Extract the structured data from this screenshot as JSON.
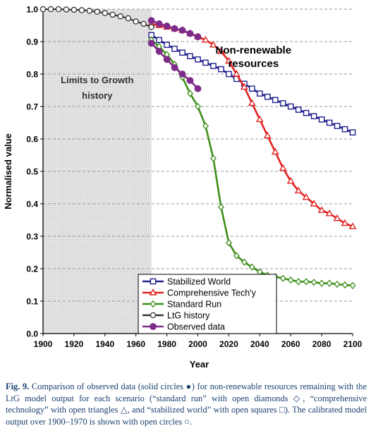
{
  "chart_data": {
    "type": "line",
    "title": "",
    "xlabel": "Year",
    "ylabel": "Normalised value",
    "xlim": [
      1900,
      2100
    ],
    "ylim": [
      0,
      1.0
    ],
    "xticks": [
      1900,
      1920,
      1940,
      1960,
      1980,
      2000,
      2020,
      2040,
      2060,
      2080,
      2100
    ],
    "yticks": [
      0.0,
      0.1,
      0.2,
      0.3,
      0.4,
      0.5,
      0.6,
      0.7,
      0.8,
      0.9,
      1.0
    ],
    "ytick_labels": [
      "0.0",
      "0.1",
      "0.2",
      "0.3",
      "0.4",
      "0.5",
      "0.6",
      "0.7",
      "0.8",
      "0.9",
      "1.0"
    ],
    "grid": "horizontal dashed",
    "shaded_region": {
      "x": [
        1900,
        1970
      ],
      "label_line1": "Limits to Growth",
      "label_line2": "history"
    },
    "annotation": {
      "line1": "Non-renewable",
      "line2": "resources",
      "x": 2035,
      "y": 0.88
    },
    "legend_position": "lower-center",
    "series": [
      {
        "name": "Stabilized World",
        "color": "#1f1f8f",
        "marker": "square",
        "x": [
          1970,
          1975,
          1980,
          1985,
          1990,
          1995,
          2000,
          2005,
          2010,
          2015,
          2020,
          2025,
          2030,
          2035,
          2040,
          2045,
          2050,
          2055,
          2060,
          2065,
          2070,
          2075,
          2080,
          2085,
          2090,
          2095,
          2100
        ],
        "y": [
          0.92,
          0.905,
          0.89,
          0.878,
          0.866,
          0.855,
          0.845,
          0.835,
          0.825,
          0.815,
          0.8,
          0.785,
          0.77,
          0.755,
          0.74,
          0.73,
          0.72,
          0.71,
          0.7,
          0.69,
          0.68,
          0.67,
          0.66,
          0.65,
          0.64,
          0.63,
          0.62
        ]
      },
      {
        "name": "Comprehensive Tech'y",
        "color": "#e0201f",
        "marker": "triangle",
        "x": [
          1970,
          1975,
          1980,
          1985,
          1990,
          1995,
          2000,
          2005,
          2010,
          2015,
          2020,
          2025,
          2030,
          2035,
          2040,
          2045,
          2050,
          2055,
          2060,
          2065,
          2070,
          2075,
          2080,
          2085,
          2090,
          2095,
          2100
        ],
        "y": [
          0.955,
          0.95,
          0.945,
          0.94,
          0.935,
          0.925,
          0.915,
          0.905,
          0.89,
          0.87,
          0.84,
          0.8,
          0.76,
          0.71,
          0.66,
          0.61,
          0.56,
          0.51,
          0.47,
          0.44,
          0.42,
          0.4,
          0.38,
          0.37,
          0.355,
          0.34,
          0.33
        ]
      },
      {
        "name": "Standard Run",
        "color": "#3c8f1a",
        "marker": "diamond",
        "x": [
          1970,
          1975,
          1980,
          1985,
          1990,
          1995,
          2000,
          2005,
          2010,
          2015,
          2020,
          2025,
          2030,
          2035,
          2040,
          2045,
          2050,
          2055,
          2060,
          2065,
          2070,
          2075,
          2080,
          2085,
          2090,
          2095,
          2100
        ],
        "y": [
          0.905,
          0.885,
          0.86,
          0.83,
          0.79,
          0.74,
          0.7,
          0.64,
          0.54,
          0.39,
          0.28,
          0.24,
          0.22,
          0.205,
          0.19,
          0.18,
          0.175,
          0.17,
          0.165,
          0.16,
          0.16,
          0.158,
          0.155,
          0.155,
          0.152,
          0.15,
          0.148
        ]
      },
      {
        "name": "LtG history",
        "color": "#333333",
        "marker": "circle-open",
        "x": [
          1900,
          1905,
          1910,
          1915,
          1920,
          1925,
          1930,
          1935,
          1940,
          1945,
          1950,
          1955,
          1960,
          1965,
          1970
        ],
        "y": [
          1.0,
          1.0,
          1.0,
          0.999,
          0.998,
          0.997,
          0.995,
          0.992,
          0.988,
          0.983,
          0.978,
          0.972,
          0.962,
          0.955,
          0.945
        ]
      },
      {
        "name": "Observed data",
        "color": "#7f2b8a",
        "marker": "circle-filled",
        "x": [
          1970,
          1975,
          1980,
          1985,
          1990,
          1995,
          2000
        ],
        "y": [
          0.895,
          0.87,
          0.845,
          0.82,
          0.8,
          0.78,
          0.755
        ]
      },
      {
        "name": "",
        "color": "#7f2b8a",
        "marker": "circle-filled",
        "x": [
          1970,
          1975,
          1980,
          1985,
          1990,
          1995,
          2000
        ],
        "y": [
          0.965,
          0.955,
          0.948,
          0.94,
          0.935,
          0.925,
          0.915
        ]
      }
    ]
  },
  "caption": {
    "label": "Fig. 9.",
    "text": "Comparison of observed data (solid circles ●) for non-renewable resources remaining with the LtG model output for each scenario (“standard run” with open diamonds ◇, “comprehensive technology” with open triangles △, and “stabilized world” with open squares □). The calibrated model output over 1900–1970 is shown with open circles ○."
  }
}
